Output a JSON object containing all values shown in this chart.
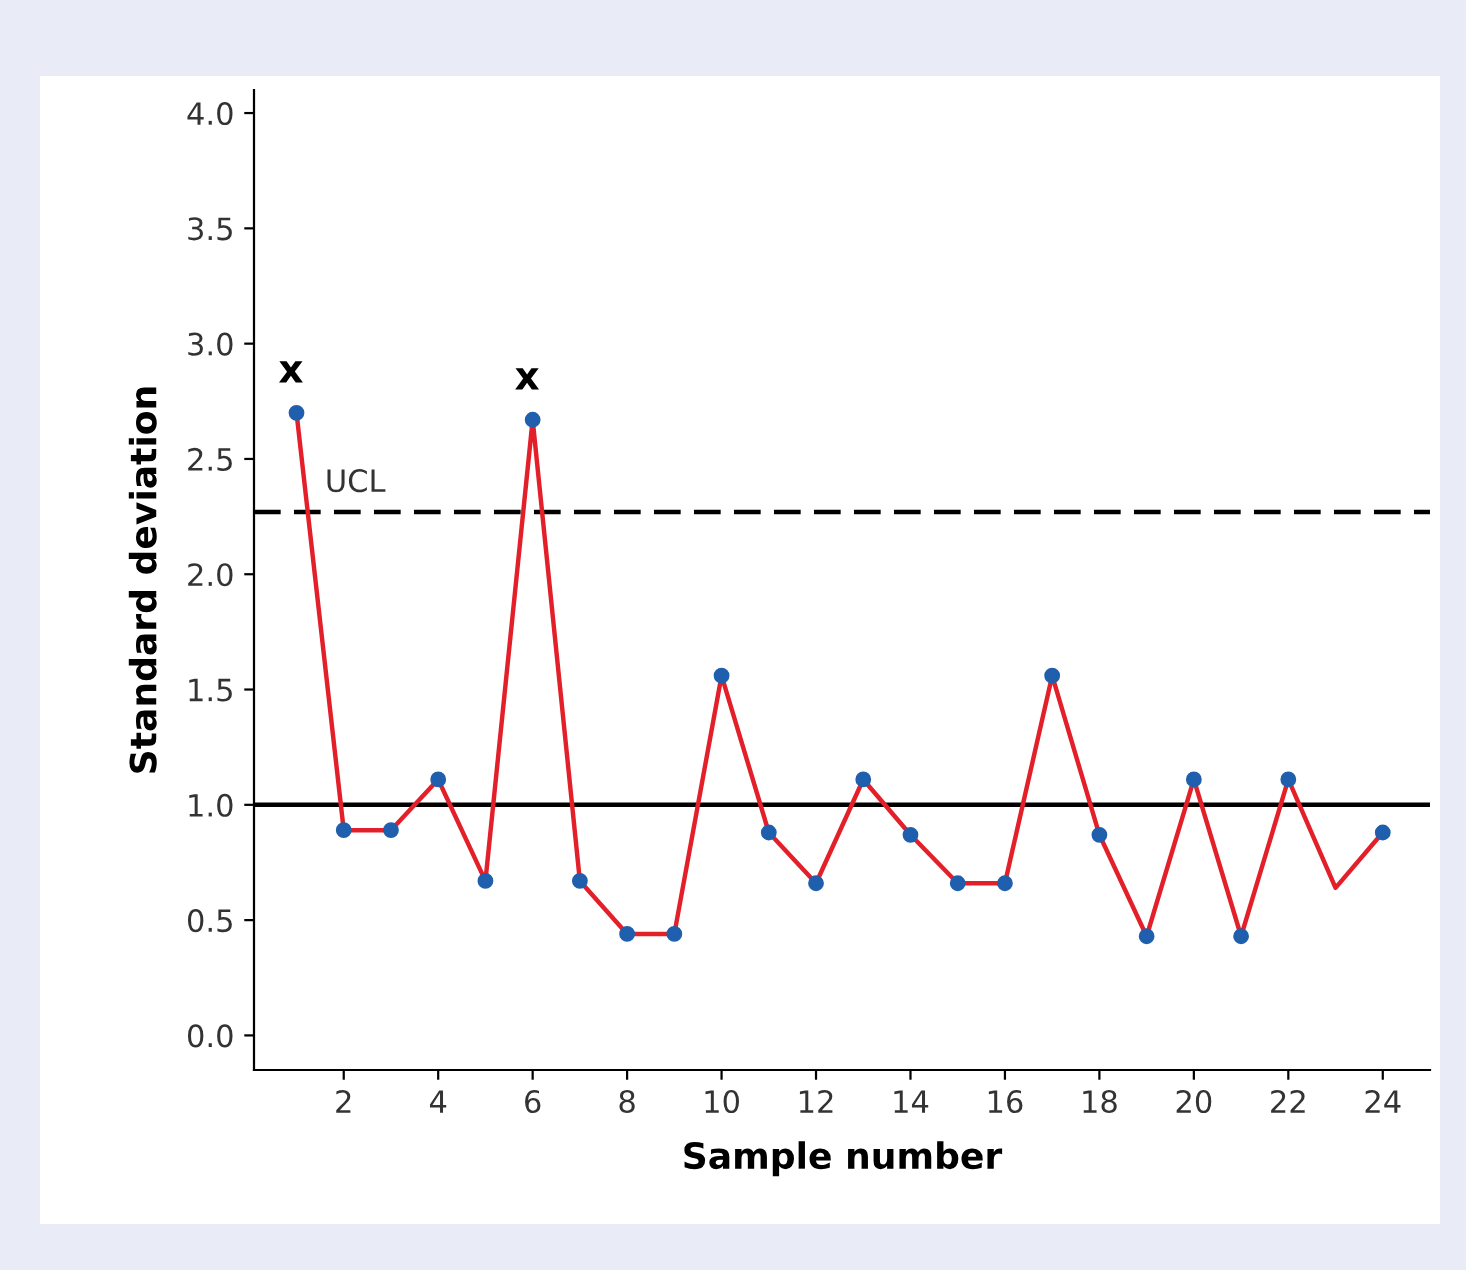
{
  "chart_data": {
    "type": "line",
    "xlabel": "Sample number",
    "ylabel": "Standard deviation",
    "x": [
      1,
      2,
      3,
      4,
      5,
      6,
      7,
      8,
      9,
      10,
      11,
      12,
      13,
      14,
      15,
      16,
      17,
      18,
      19,
      20,
      21,
      22,
      23,
      24
    ],
    "series": [
      {
        "color": "#e3202a",
        "marker": "none",
        "values": [
          2.7,
          0.89,
          0.89,
          1.11,
          0.67,
          2.67,
          0.67,
          0.44,
          0.44,
          1.56,
          0.88,
          0.66,
          1.11,
          0.87,
          0.66,
          0.66,
          1.56,
          0.87,
          0.43,
          1.11,
          0.43,
          1.11,
          0.64,
          0.88
        ]
      },
      {
        "type": "scatter",
        "color": "#1f5fad",
        "marker": "circle",
        "values": [
          2.7,
          0.89,
          0.89,
          1.11,
          0.67,
          2.67,
          0.67,
          0.44,
          0.44,
          1.56,
          0.88,
          0.66,
          1.11,
          0.87,
          0.66,
          0.66,
          1.56,
          0.87,
          0.43,
          1.11,
          0.43,
          1.11,
          null,
          0.88
        ]
      }
    ],
    "xlim": [
      0.1,
      25
    ],
    "xticks": [
      2,
      4,
      6,
      8,
      10,
      12,
      14,
      16,
      18,
      20,
      22,
      24
    ],
    "ylim": [
      -0.15,
      4.1
    ],
    "yticks": [
      {
        "value": 0,
        "label": "0.0"
      },
      0.5,
      {
        "value": 1,
        "label": "1.0"
      },
      1.5,
      {
        "value": 2,
        "label": "2.0"
      },
      2.5,
      {
        "value": 3,
        "label": "3.0"
      },
      3.5,
      {
        "value": 4,
        "label": "4.0"
      }
    ],
    "ref_lines": [
      {
        "axis": "y",
        "value": 2.27,
        "label": "UCL",
        "color": "#000000",
        "line_style": "dashed"
      },
      {
        "axis": "y",
        "value": 1.0,
        "label": null,
        "color": "#000000",
        "line_style": "solid"
      }
    ],
    "annotations": [
      {
        "text": "x",
        "x": 1,
        "y": 2.7
      },
      {
        "text": "x",
        "x": 6,
        "y": 2.67
      }
    ],
    "grid": false,
    "legend": false
  }
}
